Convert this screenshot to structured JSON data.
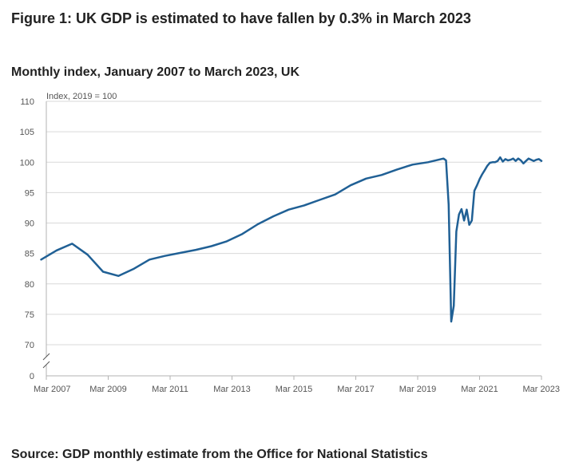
{
  "figure": {
    "title": "Figure 1: UK GDP is estimated to have fallen by 0.3% in March 2023",
    "subtitle": "Monthly index, January 2007 to March 2023, UK",
    "source": "Source: GDP monthly estimate from the Office for National Statistics"
  },
  "chart_data": {
    "type": "line",
    "ylabel": "Index, 2019 = 100",
    "ylim": [
      0,
      110
    ],
    "y_ticks": [
      "0",
      "70",
      "75",
      "80",
      "85",
      "90",
      "95",
      "100",
      "105",
      "110"
    ],
    "x_ticks": [
      "Mar 2007",
      "Mar 2009",
      "Mar 2011",
      "Mar 2013",
      "Mar 2015",
      "Mar 2017",
      "Mar 2019",
      "Mar 2021",
      "Mar 2023"
    ],
    "axis_break": true,
    "grid": true,
    "colors": {
      "line": "#206095",
      "grid": "#d9d9d9",
      "axis": "#b3b3b3"
    },
    "series": [
      {
        "x": [
          "2007-01",
          "2007-07",
          "2008-01",
          "2008-07",
          "2009-01",
          "2009-07",
          "2010-01",
          "2010-07",
          "2011-01",
          "2011-07",
          "2012-01",
          "2012-07",
          "2013-01",
          "2013-07",
          "2014-01",
          "2014-07",
          "2015-01",
          "2015-07",
          "2016-01",
          "2016-07",
          "2017-01",
          "2017-07",
          "2018-01",
          "2018-07",
          "2019-01",
          "2019-07",
          "2020-01",
          "2020-02",
          "2020-03",
          "2020-04",
          "2020-05",
          "2020-06",
          "2020-07",
          "2020-08",
          "2020-09",
          "2020-10",
          "2020-11",
          "2020-12",
          "2021-01",
          "2021-02",
          "2021-03",
          "2021-04",
          "2021-05",
          "2021-06",
          "2021-07",
          "2021-08",
          "2021-09",
          "2021-10",
          "2021-11",
          "2021-12",
          "2022-01",
          "2022-02",
          "2022-03",
          "2022-04",
          "2022-05",
          "2022-06",
          "2022-07",
          "2022-08",
          "2022-09",
          "2022-10",
          "2022-11",
          "2022-12",
          "2023-01",
          "2023-02",
          "2023-03"
        ],
        "values": [
          84.0,
          85.5,
          86.6,
          84.8,
          82.0,
          81.3,
          82.5,
          84.0,
          84.6,
          85.1,
          85.6,
          86.2,
          87.0,
          88.2,
          89.8,
          91.1,
          92.2,
          92.9,
          93.8,
          94.7,
          96.2,
          97.3,
          97.9,
          98.8,
          99.6,
          100.0,
          100.6,
          100.3,
          93.0,
          73.8,
          76.4,
          88.6,
          91.4,
          92.3,
          90.4,
          92.2,
          89.7,
          90.4,
          95.3,
          96.2,
          97.2,
          98.0,
          98.7,
          99.4,
          99.9,
          100.0,
          100.0,
          100.2,
          100.8,
          100.1,
          100.5,
          100.3,
          100.4,
          100.6,
          100.2,
          100.6,
          100.3,
          99.8,
          100.2,
          100.6,
          100.4,
          100.2,
          100.4,
          100.5,
          100.2
        ]
      }
    ]
  }
}
